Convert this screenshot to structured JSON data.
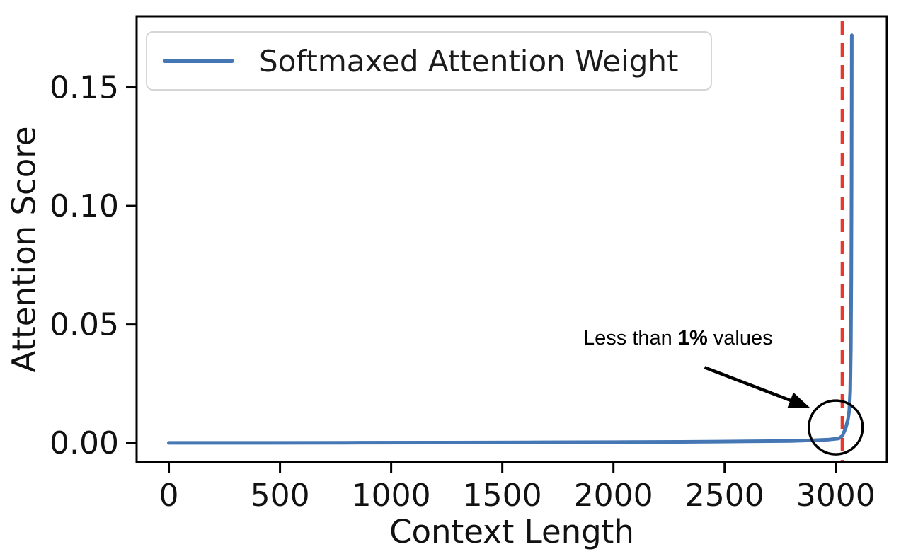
{
  "figure": {
    "background": "#ffffff"
  },
  "legend": {
    "label": "Softmaxed Attention Weight",
    "line_color": "#4577b4",
    "position": "upper left"
  },
  "annotation": {
    "prefix": "Less than ",
    "bold": "1%",
    "suffix": " values"
  },
  "chart_data": {
    "type": "line",
    "title": "",
    "xlabel": "Context Length",
    "ylabel": "Attention Score",
    "xlim": [
      -145,
      3230
    ],
    "ylim": [
      -0.008,
      0.18
    ],
    "grid": false,
    "legend_position": "upper left",
    "x_ticks": [
      0,
      500,
      1000,
      1500,
      2000,
      2500,
      3000
    ],
    "x_tick_labels": [
      "0",
      "500",
      "1000",
      "1500",
      "2000",
      "2500",
      "3000"
    ],
    "y_ticks": [
      0,
      0.05,
      0.1,
      0.15
    ],
    "y_tick_labels": [
      "0.00",
      "0.05",
      "0.10",
      "0.15"
    ],
    "series": [
      {
        "name": "Softmaxed Attention Weight",
        "color": "#4577b4",
        "points": [
          [
            0,
            0.0001
          ],
          [
            400,
            0.0001
          ],
          [
            800,
            0.00015
          ],
          [
            1200,
            0.0002
          ],
          [
            1600,
            0.0003
          ],
          [
            2000,
            0.0004
          ],
          [
            2300,
            0.0005
          ],
          [
            2600,
            0.0007
          ],
          [
            2800,
            0.0009
          ],
          [
            2900,
            0.0012
          ],
          [
            2970,
            0.0015
          ],
          [
            3013,
            0.0019
          ],
          [
            3030,
            0.003
          ],
          [
            3045,
            0.0064
          ],
          [
            3055,
            0.01
          ],
          [
            3061,
            0.0138
          ],
          [
            3065,
            0.022
          ],
          [
            3068,
            0.04
          ],
          [
            3070,
            0.07
          ],
          [
            3071,
            0.11
          ],
          [
            3072,
            0.172
          ]
        ]
      }
    ],
    "vline": {
      "x": 3030,
      "color": "#e7382c",
      "style": "dashed"
    },
    "annotations": {
      "label": "Less than 1% values",
      "text_center": {
        "x": 2365,
        "y": 0.0425
      },
      "arrow_start": {
        "x": 2410,
        "y": 0.0319
      },
      "arrow_end": {
        "x": 2885,
        "y": 0.0148
      },
      "circle_center": {
        "x": 3000,
        "y": 0.0066
      },
      "circle_radius_px": 38,
      "color": "#000000"
    }
  }
}
